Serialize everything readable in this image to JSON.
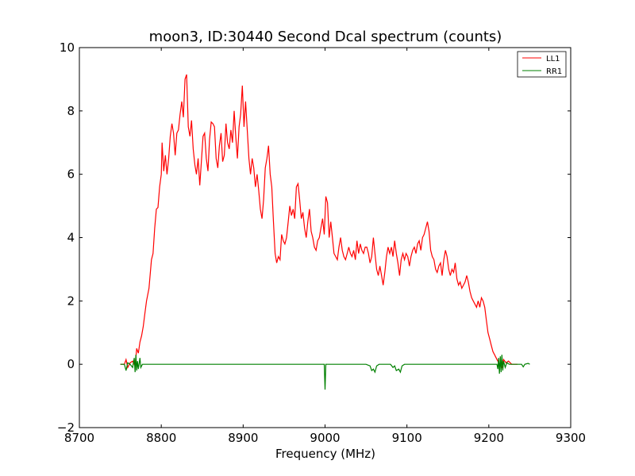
{
  "chart_data": {
    "type": "line",
    "title": "moon3, ID:30440 Second Dcal spectrum (counts)",
    "xlabel": "Frequency (MHz)",
    "ylabel": "",
    "xlim": [
      8700,
      9300
    ],
    "ylim": [
      -2,
      10
    ],
    "x_ticks": [
      8700,
      8800,
      8900,
      9000,
      9100,
      9200,
      9300
    ],
    "y_ticks": [
      -2,
      0,
      2,
      4,
      6,
      8,
      10
    ],
    "x_tick_labels": [
      "8700",
      "8800",
      "8900",
      "9000",
      "9100",
      "9200",
      "9300"
    ],
    "y_tick_labels": [
      "−2",
      "0",
      "2",
      "4",
      "6",
      "8",
      "10"
    ],
    "grid": false,
    "legend_position": "top-right",
    "series": [
      {
        "name": "LL1",
        "color": "#ff0000",
        "points": [
          [
            8750,
            0.0
          ],
          [
            8755,
            0.0
          ],
          [
            8757,
            0.15
          ],
          [
            8759,
            -0.1
          ],
          [
            8762,
            0.05
          ],
          [
            8765,
            0.1
          ],
          [
            8768,
            -0.05
          ],
          [
            8770,
            0.5
          ],
          [
            8772,
            0.35
          ],
          [
            8774,
            0.7
          ],
          [
            8776,
            0.9
          ],
          [
            8778,
            1.2
          ],
          [
            8780,
            1.6
          ],
          [
            8782,
            2.0
          ],
          [
            8785,
            2.4
          ],
          [
            8788,
            3.3
          ],
          [
            8790,
            3.5
          ],
          [
            8792,
            4.3
          ],
          [
            8794,
            4.9
          ],
          [
            8796,
            4.95
          ],
          [
            8798,
            5.6
          ],
          [
            8800,
            6.0
          ],
          [
            8801,
            7.0
          ],
          [
            8803,
            6.1
          ],
          [
            8805,
            6.6
          ],
          [
            8807,
            6.0
          ],
          [
            8809,
            6.5
          ],
          [
            8811,
            7.2
          ],
          [
            8813,
            7.6
          ],
          [
            8815,
            7.3
          ],
          [
            8817,
            6.6
          ],
          [
            8819,
            7.3
          ],
          [
            8821,
            7.4
          ],
          [
            8823,
            7.9
          ],
          [
            8825,
            8.3
          ],
          [
            8827,
            7.8
          ],
          [
            8829,
            9.0
          ],
          [
            8831,
            9.15
          ],
          [
            8833,
            7.5
          ],
          [
            8835,
            7.2
          ],
          [
            8837,
            7.7
          ],
          [
            8839,
            6.8
          ],
          [
            8841,
            6.3
          ],
          [
            8843,
            6.0
          ],
          [
            8845,
            6.5
          ],
          [
            8847,
            5.65
          ],
          [
            8849,
            6.4
          ],
          [
            8851,
            7.2
          ],
          [
            8853,
            7.3
          ],
          [
            8855,
            6.5
          ],
          [
            8857,
            6.1
          ],
          [
            8859,
            7.1
          ],
          [
            8861,
            7.65
          ],
          [
            8863,
            7.6
          ],
          [
            8865,
            7.5
          ],
          [
            8867,
            6.5
          ],
          [
            8869,
            6.2
          ],
          [
            8871,
            6.9
          ],
          [
            8873,
            7.3
          ],
          [
            8875,
            6.4
          ],
          [
            8877,
            6.6
          ],
          [
            8879,
            7.6
          ],
          [
            8881,
            7.0
          ],
          [
            8883,
            6.8
          ],
          [
            8885,
            7.4
          ],
          [
            8887,
            7.0
          ],
          [
            8889,
            8.0
          ],
          [
            8891,
            7.2
          ],
          [
            8893,
            6.5
          ],
          [
            8895,
            7.5
          ],
          [
            8897,
            7.9
          ],
          [
            8899,
            8.8
          ],
          [
            8901,
            7.5
          ],
          [
            8903,
            8.3
          ],
          [
            8905,
            7.4
          ],
          [
            8907,
            6.5
          ],
          [
            8909,
            6.0
          ],
          [
            8911,
            6.5
          ],
          [
            8913,
            6.2
          ],
          [
            8915,
            5.6
          ],
          [
            8917,
            6.0
          ],
          [
            8919,
            5.5
          ],
          [
            8921,
            4.9
          ],
          [
            8923,
            4.6
          ],
          [
            8925,
            5.2
          ],
          [
            8927,
            6.2
          ],
          [
            8929,
            6.5
          ],
          [
            8931,
            6.9
          ],
          [
            8933,
            6.0
          ],
          [
            8935,
            5.6
          ],
          [
            8937,
            4.5
          ],
          [
            8939,
            3.5
          ],
          [
            8941,
            3.2
          ],
          [
            8943,
            3.4
          ],
          [
            8945,
            3.3
          ],
          [
            8947,
            4.1
          ],
          [
            8949,
            3.9
          ],
          [
            8951,
            3.8
          ],
          [
            8953,
            4.0
          ],
          [
            8955,
            4.5
          ],
          [
            8957,
            5.0
          ],
          [
            8959,
            4.7
          ],
          [
            8961,
            4.9
          ],
          [
            8963,
            4.6
          ],
          [
            8965,
            5.6
          ],
          [
            8967,
            5.7
          ],
          [
            8969,
            5.2
          ],
          [
            8971,
            4.6
          ],
          [
            8973,
            4.8
          ],
          [
            8975,
            4.3
          ],
          [
            8977,
            4.0
          ],
          [
            8979,
            4.5
          ],
          [
            8981,
            4.9
          ],
          [
            8983,
            4.2
          ],
          [
            8985,
            4.0
          ],
          [
            8987,
            3.7
          ],
          [
            8989,
            3.6
          ],
          [
            8991,
            3.9
          ],
          [
            8993,
            4.0
          ],
          [
            8995,
            4.3
          ],
          [
            8997,
            4.6
          ],
          [
            8999,
            4.1
          ],
          [
            9001,
            5.3
          ],
          [
            9003,
            5.1
          ],
          [
            9005,
            4.0
          ],
          [
            9007,
            4.5
          ],
          [
            9009,
            4.0
          ],
          [
            9011,
            3.5
          ],
          [
            9013,
            3.4
          ],
          [
            9015,
            3.3
          ],
          [
            9017,
            3.7
          ],
          [
            9019,
            4.0
          ],
          [
            9021,
            3.6
          ],
          [
            9023,
            3.4
          ],
          [
            9025,
            3.3
          ],
          [
            9027,
            3.5
          ],
          [
            9029,
            3.7
          ],
          [
            9031,
            3.5
          ],
          [
            9033,
            3.4
          ],
          [
            9035,
            3.6
          ],
          [
            9037,
            3.3
          ],
          [
            9039,
            3.9
          ],
          [
            9041,
            3.5
          ],
          [
            9043,
            3.8
          ],
          [
            9045,
            3.6
          ],
          [
            9047,
            3.5
          ],
          [
            9049,
            3.7
          ],
          [
            9051,
            3.7
          ],
          [
            9053,
            3.5
          ],
          [
            9055,
            3.2
          ],
          [
            9057,
            3.4
          ],
          [
            9059,
            4.0
          ],
          [
            9061,
            3.5
          ],
          [
            9063,
            3.0
          ],
          [
            9065,
            2.8
          ],
          [
            9067,
            3.1
          ],
          [
            9069,
            2.8
          ],
          [
            9071,
            2.5
          ],
          [
            9073,
            2.9
          ],
          [
            9075,
            3.4
          ],
          [
            9077,
            3.7
          ],
          [
            9079,
            3.5
          ],
          [
            9081,
            3.7
          ],
          [
            9083,
            3.4
          ],
          [
            9085,
            3.9
          ],
          [
            9087,
            3.5
          ],
          [
            9089,
            3.2
          ],
          [
            9091,
            2.8
          ],
          [
            9093,
            3.3
          ],
          [
            9095,
            3.5
          ],
          [
            9097,
            3.3
          ],
          [
            9099,
            3.5
          ],
          [
            9101,
            3.4
          ],
          [
            9103,
            3.1
          ],
          [
            9105,
            3.4
          ],
          [
            9107,
            3.6
          ],
          [
            9109,
            3.7
          ],
          [
            9111,
            3.5
          ],
          [
            9113,
            3.8
          ],
          [
            9115,
            3.9
          ],
          [
            9117,
            3.6
          ],
          [
            9119,
            4.0
          ],
          [
            9121,
            4.1
          ],
          [
            9123,
            4.3
          ],
          [
            9125,
            4.5
          ],
          [
            9127,
            4.2
          ],
          [
            9129,
            3.6
          ],
          [
            9131,
            3.4
          ],
          [
            9133,
            3.3
          ],
          [
            9135,
            3.0
          ],
          [
            9137,
            2.9
          ],
          [
            9139,
            3.1
          ],
          [
            9141,
            3.2
          ],
          [
            9143,
            2.8
          ],
          [
            9145,
            3.3
          ],
          [
            9147,
            3.6
          ],
          [
            9149,
            3.4
          ],
          [
            9151,
            3.0
          ],
          [
            9153,
            2.8
          ],
          [
            9155,
            3.0
          ],
          [
            9157,
            2.9
          ],
          [
            9159,
            3.2
          ],
          [
            9161,
            2.7
          ],
          [
            9163,
            2.5
          ],
          [
            9165,
            2.6
          ],
          [
            9167,
            2.4
          ],
          [
            9169,
            2.5
          ],
          [
            9171,
            2.6
          ],
          [
            9173,
            2.8
          ],
          [
            9175,
            2.6
          ],
          [
            9177,
            2.3
          ],
          [
            9179,
            2.1
          ],
          [
            9181,
            2.0
          ],
          [
            9183,
            1.9
          ],
          [
            9185,
            1.8
          ],
          [
            9187,
            2.0
          ],
          [
            9189,
            1.8
          ],
          [
            9191,
            2.1
          ],
          [
            9193,
            2.0
          ],
          [
            9195,
            1.8
          ],
          [
            9197,
            1.4
          ],
          [
            9199,
            1.0
          ],
          [
            9201,
            0.8
          ],
          [
            9203,
            0.6
          ],
          [
            9205,
            0.4
          ],
          [
            9207,
            0.3
          ],
          [
            9209,
            0.2
          ],
          [
            9211,
            0.1
          ],
          [
            9213,
            0.0
          ],
          [
            9216,
            -0.1
          ],
          [
            9218,
            0.15
          ],
          [
            9221,
            0.05
          ],
          [
            9224,
            0.1
          ],
          [
            9228,
            0.0
          ],
          [
            9235,
            0.0
          ]
        ]
      },
      {
        "name": "RR1",
        "color": "#008000",
        "points": [
          [
            8750,
            0.0
          ],
          [
            8755,
            0.0
          ],
          [
            8757,
            -0.2
          ],
          [
            8759,
            0.05
          ],
          [
            8762,
            0.0
          ],
          [
            8765,
            -0.1
          ],
          [
            8767,
            0.2
          ],
          [
            8768,
            -0.25
          ],
          [
            8769,
            0.3
          ],
          [
            8770,
            -0.2
          ],
          [
            8771,
            0.1
          ],
          [
            8772,
            -0.15
          ],
          [
            8774,
            0.2
          ],
          [
            8775,
            -0.1
          ],
          [
            8777,
            0.0
          ],
          [
            8800,
            0.0
          ],
          [
            8850,
            0.0
          ],
          [
            8900,
            0.0
          ],
          [
            8950,
            0.0
          ],
          [
            8998,
            0.0
          ],
          [
            8999,
            0.0
          ],
          [
            9000,
            -0.8
          ],
          [
            9001,
            0.0
          ],
          [
            9050,
            0.0
          ],
          [
            9055,
            -0.05
          ],
          [
            9057,
            -0.2
          ],
          [
            9059,
            -0.15
          ],
          [
            9061,
            -0.25
          ],
          [
            9063,
            -0.05
          ],
          [
            9066,
            0.0
          ],
          [
            9080,
            0.0
          ],
          [
            9083,
            -0.1
          ],
          [
            9085,
            -0.05
          ],
          [
            9087,
            -0.2
          ],
          [
            9090,
            -0.15
          ],
          [
            9092,
            -0.25
          ],
          [
            9094,
            -0.05
          ],
          [
            9097,
            0.0
          ],
          [
            9150,
            0.0
          ],
          [
            9200,
            0.0
          ],
          [
            9210,
            0.0
          ],
          [
            9211,
            -0.15
          ],
          [
            9212,
            0.2
          ],
          [
            9213,
            -0.3
          ],
          [
            9214,
            0.25
          ],
          [
            9215,
            -0.25
          ],
          [
            9216,
            0.3
          ],
          [
            9217,
            -0.2
          ],
          [
            9218,
            0.1
          ],
          [
            9220,
            -0.1
          ],
          [
            9222,
            0.05
          ],
          [
            9225,
            0.0
          ],
          [
            9230,
            0.0
          ],
          [
            9240,
            0.0
          ],
          [
            9242,
            -0.08
          ],
          [
            9244,
            0.0
          ],
          [
            9248,
            0.03
          ],
          [
            9250,
            0.0
          ]
        ]
      }
    ]
  }
}
